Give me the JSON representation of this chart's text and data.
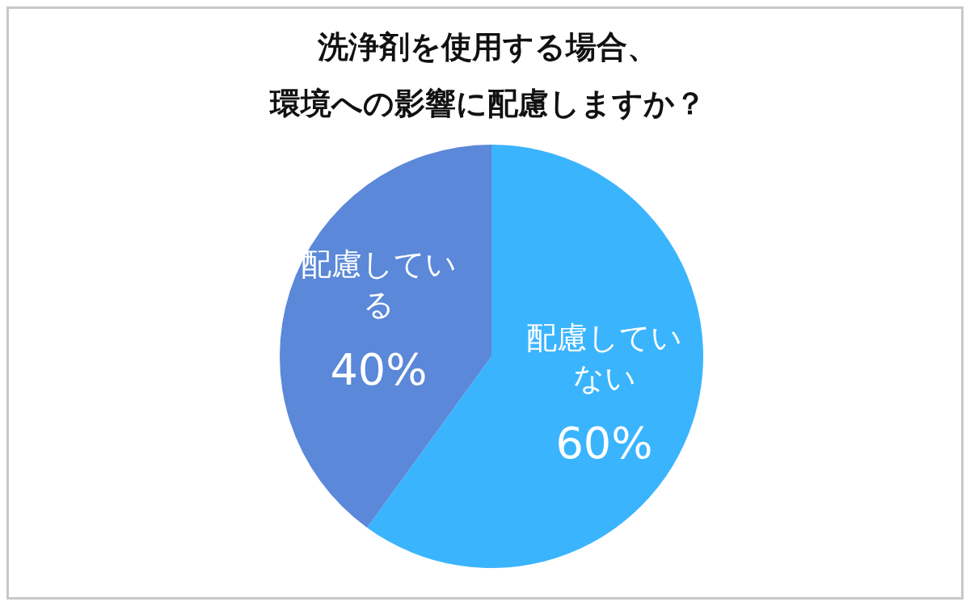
{
  "chart_data": {
    "type": "pie",
    "title": "洗浄剤を使用する場合、環境への影響に配慮しますか？",
    "categories": [
      "配慮していない",
      "配慮している"
    ],
    "values": [
      60,
      40
    ],
    "colors": [
      "#3bb4fe",
      "#5b88d8"
    ],
    "value_labels": [
      "60%",
      "40%"
    ],
    "legend": false
  }
}
